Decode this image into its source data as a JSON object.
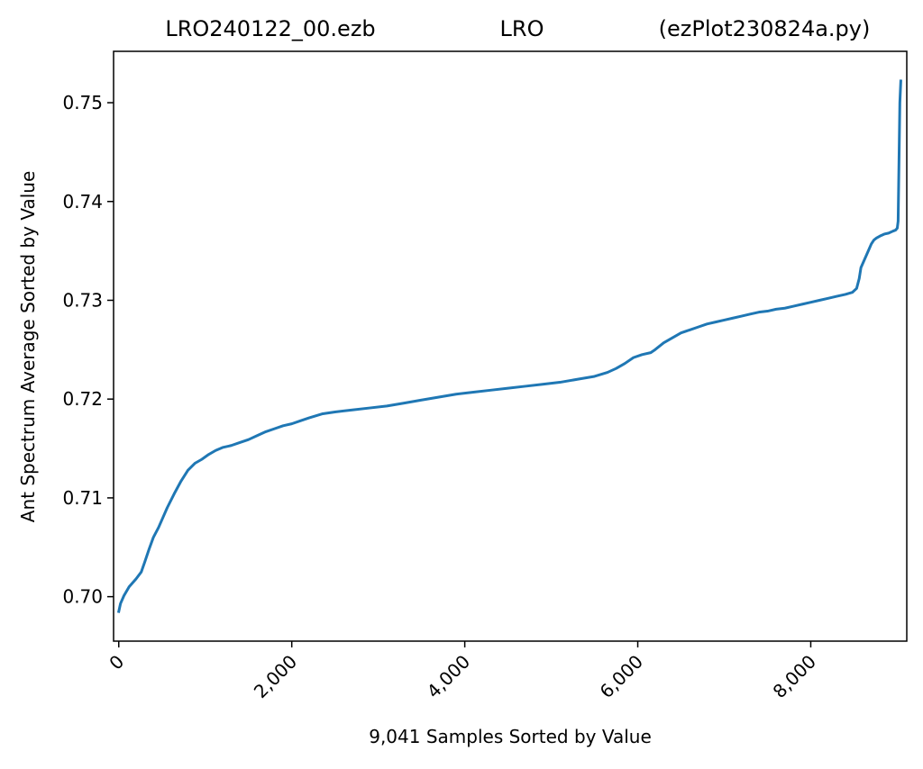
{
  "chart_data": {
    "type": "line",
    "title": {
      "left": "LRO240122_00.ezb",
      "center": "LRO",
      "right": "(ezPlot230824a.py)"
    },
    "xlabel": "9,041 Samples Sorted by Value",
    "ylabel": "Ant Spectrum Average Sorted by Value",
    "xlim": [
      -60,
      9110
    ],
    "ylim": [
      0.6955,
      0.7552
    ],
    "xticks": [
      {
        "value": 0,
        "label": "0"
      },
      {
        "value": 2000,
        "label": "2,000"
      },
      {
        "value": 4000,
        "label": "4,000"
      },
      {
        "value": 6000,
        "label": "6,000"
      },
      {
        "value": 8000,
        "label": "8,000"
      }
    ],
    "yticks": [
      {
        "value": 0.7,
        "label": "0.70"
      },
      {
        "value": 0.71,
        "label": "0.71"
      },
      {
        "value": 0.72,
        "label": "0.72"
      },
      {
        "value": 0.73,
        "label": "0.73"
      },
      {
        "value": 0.74,
        "label": "0.74"
      },
      {
        "value": 0.75,
        "label": "0.75"
      }
    ],
    "grid": false,
    "series": [
      {
        "color": "#1f77b4",
        "x": [
          0,
          20,
          60,
          120,
          200,
          260,
          300,
          350,
          400,
          460,
          500,
          560,
          640,
          720,
          800,
          880,
          960,
          1040,
          1120,
          1200,
          1300,
          1400,
          1500,
          1600,
          1700,
          1800,
          1900,
          2000,
          2100,
          2200,
          2350,
          2500,
          2700,
          2900,
          3100,
          3300,
          3500,
          3700,
          3900,
          4100,
          4300,
          4500,
          4700,
          4900,
          5100,
          5300,
          5500,
          5650,
          5750,
          5850,
          5950,
          6050,
          6150,
          6200,
          6300,
          6400,
          6500,
          6600,
          6700,
          6800,
          6900,
          7000,
          7100,
          7200,
          7300,
          7400,
          7500,
          7600,
          7700,
          7800,
          7900,
          8000,
          8100,
          8200,
          8300,
          8400,
          8480,
          8530,
          8560,
          8580,
          8620,
          8660,
          8700,
          8730,
          8760,
          8800,
          8850,
          8900,
          8950,
          8980,
          9000,
          9010,
          9020,
          9030,
          9041
        ],
        "y": [
          0.6985,
          0.6993,
          0.7001,
          0.701,
          0.7018,
          0.7025,
          0.7035,
          0.7048,
          0.706,
          0.707,
          0.7078,
          0.709,
          0.7104,
          0.7117,
          0.7128,
          0.7135,
          0.7139,
          0.7144,
          0.7148,
          0.7151,
          0.7153,
          0.7156,
          0.7159,
          0.7163,
          0.7167,
          0.717,
          0.7173,
          0.7175,
          0.7178,
          0.7181,
          0.7185,
          0.7187,
          0.7189,
          0.7191,
          0.7193,
          0.7196,
          0.7199,
          0.7202,
          0.7205,
          0.7207,
          0.7209,
          0.7211,
          0.7213,
          0.7215,
          0.7217,
          0.722,
          0.7223,
          0.7227,
          0.7231,
          0.7236,
          0.7242,
          0.7245,
          0.7247,
          0.725,
          0.7257,
          0.7262,
          0.7267,
          0.727,
          0.7273,
          0.7276,
          0.7278,
          0.728,
          0.7282,
          0.7284,
          0.7286,
          0.7288,
          0.7289,
          0.7291,
          0.7292,
          0.7294,
          0.7296,
          0.7298,
          0.73,
          0.7302,
          0.7304,
          0.7306,
          0.7308,
          0.7312,
          0.7322,
          0.7333,
          0.7341,
          0.7349,
          0.7357,
          0.7361,
          0.7363,
          0.7365,
          0.7367,
          0.7368,
          0.737,
          0.7371,
          0.7373,
          0.738,
          0.744,
          0.75,
          0.7522
        ]
      }
    ]
  }
}
